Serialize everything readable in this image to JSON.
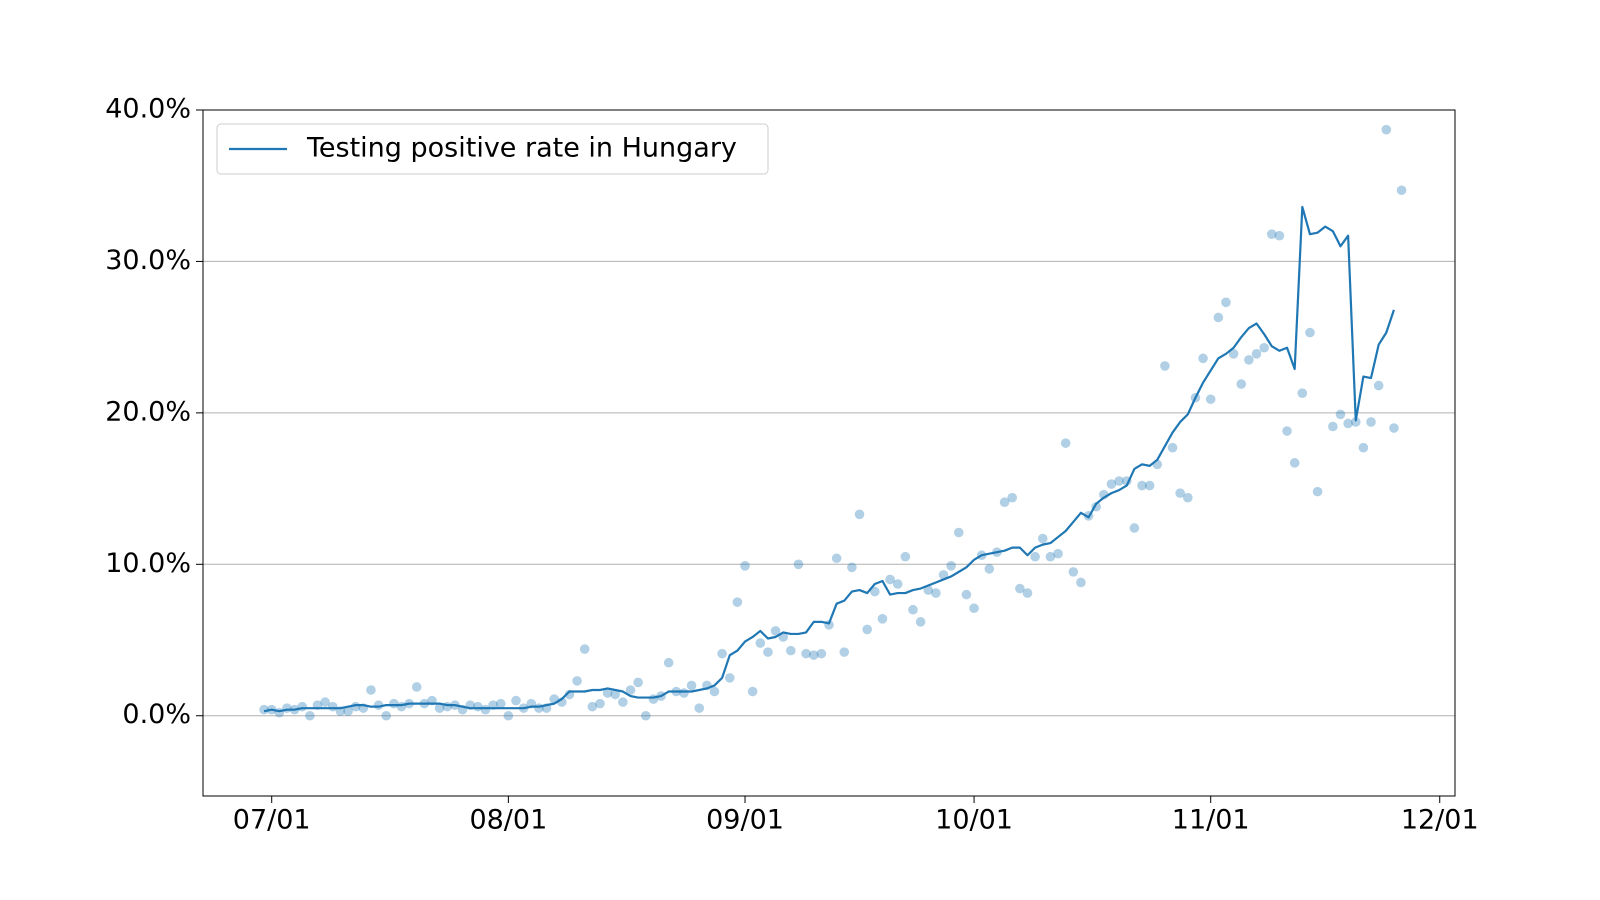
{
  "chart_data": {
    "type": "line",
    "x": [
      "06/30",
      "07/01",
      "07/02",
      "07/03",
      "07/04",
      "07/05",
      "07/06",
      "07/07",
      "07/08",
      "07/09",
      "07/10",
      "07/11",
      "07/12",
      "07/13",
      "07/14",
      "07/15",
      "07/16",
      "07/17",
      "07/18",
      "07/19",
      "07/20",
      "07/21",
      "07/22",
      "07/23",
      "07/24",
      "07/25",
      "07/26",
      "07/27",
      "07/28",
      "07/29",
      "07/30",
      "07/31",
      "08/01",
      "08/02",
      "08/03",
      "08/04",
      "08/05",
      "08/06",
      "08/07",
      "08/08",
      "08/09",
      "08/10",
      "08/11",
      "08/12",
      "08/13",
      "08/14",
      "08/15",
      "08/16",
      "08/17",
      "08/18",
      "08/19",
      "08/20",
      "08/21",
      "08/22",
      "08/23",
      "08/24",
      "08/25",
      "08/26",
      "08/27",
      "08/28",
      "08/29",
      "08/30",
      "08/31",
      "09/01",
      "09/02",
      "09/03",
      "09/04",
      "09/05",
      "09/06",
      "09/07",
      "09/08",
      "09/09",
      "09/10",
      "09/11",
      "09/12",
      "09/13",
      "09/14",
      "09/15",
      "09/16",
      "09/17",
      "09/18",
      "09/19",
      "09/20",
      "09/21",
      "09/22",
      "09/23",
      "09/24",
      "09/25",
      "09/26",
      "09/27",
      "09/28",
      "09/29",
      "09/30",
      "10/01",
      "10/02",
      "10/03",
      "10/04",
      "10/05",
      "10/06",
      "10/07",
      "10/08",
      "10/09",
      "10/10",
      "10/11",
      "10/12",
      "10/13",
      "10/14",
      "10/15",
      "10/16",
      "10/17",
      "10/18",
      "10/19",
      "10/20",
      "10/21",
      "10/22",
      "10/23",
      "10/24",
      "10/25",
      "10/26",
      "10/27",
      "10/28",
      "10/29",
      "10/30",
      "10/31",
      "11/01",
      "11/02",
      "11/03",
      "11/04",
      "11/05",
      "11/06",
      "11/07",
      "11/08",
      "11/09",
      "11/10",
      "11/11",
      "11/12",
      "11/13",
      "11/14",
      "11/15",
      "11/16",
      "11/17",
      "11/18",
      "11/19",
      "11/20",
      "11/21",
      "11/22",
      "11/23",
      "11/24",
      "11/25",
      "11/26"
    ],
    "series": [
      {
        "name": "Testing positive rate in Hungary",
        "type": "line",
        "color": "#1f77b4",
        "values": [
          0.3,
          0.4,
          0.3,
          0.4,
          0.4,
          0.5,
          0.5,
          0.5,
          0.5,
          0.5,
          0.5,
          0.6,
          0.7,
          0.7,
          0.6,
          0.6,
          0.7,
          0.7,
          0.7,
          0.8,
          0.8,
          0.8,
          0.8,
          0.8,
          0.7,
          0.7,
          0.6,
          0.5,
          0.5,
          0.5,
          0.5,
          0.5,
          0.5,
          0.5,
          0.5,
          0.6,
          0.6,
          0.7,
          0.8,
          1.1,
          1.6,
          1.6,
          1.6,
          1.7,
          1.7,
          1.8,
          1.7,
          1.6,
          1.3,
          1.2,
          1.2,
          1.2,
          1.3,
          1.6,
          1.6,
          1.6,
          1.6,
          1.7,
          1.8,
          2.0,
          2.5,
          4.0,
          4.3,
          4.9,
          5.2,
          5.6,
          5.1,
          5.2,
          5.5,
          5.4,
          5.4,
          5.5,
          6.2,
          6.2,
          6.1,
          7.4,
          7.6,
          8.2,
          8.3,
          8.1,
          8.7,
          8.9,
          8.0,
          8.1,
          8.1,
          8.3,
          8.4,
          8.6,
          8.8,
          9.0,
          9.2,
          9.5,
          9.8,
          10.3,
          10.6,
          10.7,
          10.8,
          10.9,
          11.1,
          11.1,
          10.6,
          11.1,
          11.3,
          11.4,
          11.8,
          12.2,
          12.8,
          13.4,
          13.1,
          14.0,
          14.4,
          14.7,
          14.9,
          15.2,
          16.3,
          16.6,
          16.5,
          16.9,
          17.8,
          18.7,
          19.4,
          19.9,
          21.0,
          22.0,
          22.8,
          23.6,
          23.9,
          24.3,
          25.0,
          25.6,
          25.9,
          25.2,
          24.4,
          24.1,
          24.3,
          22.9,
          33.6,
          31.8,
          31.9,
          32.3,
          32.0,
          31.0,
          31.7,
          19.5,
          22.4,
          22.3,
          24.5,
          25.3,
          26.8,
          null
        ]
      },
      {
        "type": "scatter",
        "color": "#1f77b4",
        "opacity": 0.35,
        "values": [
          0.4,
          0.4,
          0.2,
          0.5,
          0.4,
          0.6,
          0.0,
          0.7,
          0.9,
          0.6,
          0.3,
          0.3,
          0.6,
          0.5,
          1.7,
          0.7,
          0.0,
          0.8,
          0.6,
          0.8,
          1.9,
          0.8,
          1.0,
          0.5,
          0.6,
          0.7,
          0.4,
          0.7,
          0.6,
          0.4,
          0.7,
          0.8,
          0.0,
          1.0,
          0.5,
          0.8,
          0.5,
          0.5,
          1.1,
          0.9,
          1.4,
          2.3,
          4.4,
          0.6,
          0.8,
          1.5,
          1.4,
          0.9,
          1.7,
          2.2,
          0.0,
          1.1,
          1.3,
          3.5,
          1.6,
          1.5,
          2.0,
          0.5,
          2.0,
          1.6,
          4.1,
          2.5,
          7.5,
          9.9,
          1.6,
          4.8,
          4.2,
          5.6,
          5.2,
          4.3,
          10.0,
          4.1,
          4.0,
          4.1,
          6.0,
          10.4,
          4.2,
          9.8,
          13.3,
          5.7,
          8.2,
          6.4,
          9.0,
          8.7,
          10.5,
          7.0,
          6.2,
          8.3,
          8.1,
          9.3,
          9.9,
          12.1,
          8.0,
          7.1,
          10.6,
          9.7,
          10.8,
          14.1,
          14.4,
          8.4,
          8.1,
          10.5,
          11.7,
          10.5,
          10.7,
          18.0,
          9.5,
          8.8,
          13.2,
          13.8,
          14.6,
          15.3,
          15.5,
          15.5,
          12.4,
          15.2,
          15.2,
          16.6,
          23.1,
          17.7,
          14.7,
          14.4,
          21.0,
          23.6,
          20.9,
          26.3,
          27.3,
          23.9,
          21.9,
          23.5,
          23.9,
          24.3,
          31.8,
          31.7,
          18.8,
          16.7,
          21.3,
          25.3,
          14.8,
          null,
          19.1,
          19.9,
          19.3,
          19.4,
          17.7,
          19.4,
          21.8,
          38.7,
          19.0,
          34.7
        ]
      }
    ],
    "xlim": [
      "06/22",
      "12/03"
    ],
    "xticks": [
      "07/01",
      "08/01",
      "09/01",
      "10/01",
      "11/01",
      "12/01"
    ],
    "ylim": [
      -5.3,
      40
    ],
    "yticks": [
      {
        "value": 0,
        "label": "0.0%"
      },
      {
        "value": 10,
        "label": "10.0%"
      },
      {
        "value": 20,
        "label": "20.0%"
      },
      {
        "value": 30,
        "label": "30.0%"
      },
      {
        "value": 40,
        "label": "40.0%"
      }
    ],
    "grid": true,
    "legend": "upper left"
  }
}
